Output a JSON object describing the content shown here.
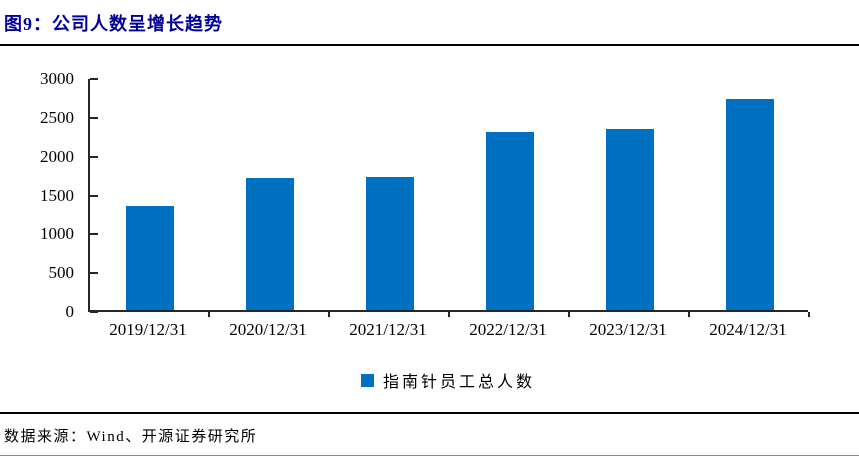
{
  "header": {
    "title": "图9：公司人数呈增长趋势"
  },
  "chart_data": {
    "type": "bar",
    "title": "",
    "categories": [
      "2019/12/31",
      "2020/12/31",
      "2021/12/31",
      "2022/12/31",
      "2023/12/31",
      "2024/12/31"
    ],
    "series": [
      {
        "name": "指南针员工总人数",
        "values": [
          1344,
          1703,
          1712,
          2297,
          2332,
          2716
        ]
      }
    ],
    "ylim": [
      0,
      3000
    ],
    "ytick_step": 500,
    "ytick_labels": [
      "0",
      "500",
      "1000",
      "1500",
      "2000",
      "2500",
      "3000"
    ],
    "grid": false,
    "legend_position": "bottom",
    "bar_color": "#0070C0",
    "axis_color": "#262626"
  },
  "legend": {
    "marker": "blue-square",
    "label": "指南针员工总人数"
  },
  "footer": {
    "source": "数据来源：Wind、开源证券研究所"
  },
  "colors": {
    "title": "#000099",
    "bar": "#0070C0",
    "rule": "#000000",
    "axis": "#262626"
  }
}
